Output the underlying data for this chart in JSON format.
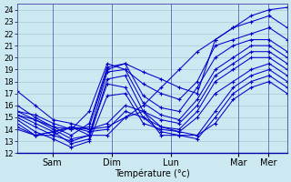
{
  "xlabel": "Température (°c)",
  "ylim": [
    12,
    24.5
  ],
  "yticks": [
    12,
    13,
    14,
    15,
    16,
    17,
    18,
    19,
    20,
    21,
    22,
    23,
    24
  ],
  "xlim": [
    0,
    100
  ],
  "day_ticks": [
    13,
    35,
    57,
    82,
    93
  ],
  "day_labels": [
    "Sam",
    "Dim",
    "Lun",
    "Mar",
    "Mer"
  ],
  "background_color": "#cce8f0",
  "grid_color": "#a8c8d8",
  "line_color": "#0000cc",
  "lines": [
    [
      17.2,
      16.0,
      14.8,
      14.5,
      14.0,
      14.2,
      15.0,
      16.0,
      17.5,
      19.0,
      20.5,
      21.5,
      22.5,
      23.5,
      24.0,
      24.2
    ],
    [
      15.5,
      15.2,
      14.5,
      14.0,
      14.2,
      19.0,
      19.5,
      18.8,
      18.2,
      17.5,
      17.0,
      21.5,
      22.5,
      23.0,
      23.5,
      22.5
    ],
    [
      15.2,
      14.8,
      14.2,
      14.0,
      15.5,
      19.5,
      19.0,
      17.8,
      17.0,
      16.5,
      18.0,
      21.0,
      21.5,
      22.0,
      22.5,
      21.5
    ],
    [
      16.0,
      15.0,
      14.2,
      13.5,
      14.5,
      19.2,
      19.5,
      16.8,
      15.8,
      15.5,
      17.5,
      20.0,
      21.0,
      21.5,
      21.5,
      20.5
    ],
    [
      15.5,
      14.8,
      14.0,
      13.2,
      13.5,
      18.8,
      19.0,
      16.2,
      15.2,
      14.8,
      16.5,
      19.0,
      20.0,
      21.0,
      21.0,
      20.0
    ],
    [
      15.2,
      14.5,
      13.8,
      12.8,
      13.2,
      18.2,
      18.5,
      15.5,
      14.8,
      14.5,
      16.0,
      18.5,
      19.5,
      20.5,
      20.5,
      19.5
    ],
    [
      15.0,
      14.2,
      13.5,
      13.0,
      13.5,
      17.8,
      17.5,
      15.0,
      14.2,
      14.0,
      15.5,
      18.0,
      19.0,
      20.0,
      20.0,
      19.0
    ],
    [
      14.8,
      13.8,
      13.2,
      12.5,
      13.0,
      16.8,
      17.0,
      14.5,
      14.0,
      13.8,
      15.0,
      17.0,
      18.0,
      19.0,
      19.5,
      18.5
    ],
    [
      14.5,
      13.5,
      13.8,
      14.2,
      14.0,
      14.5,
      16.0,
      15.5,
      14.2,
      13.8,
      13.5,
      15.5,
      17.5,
      18.5,
      19.0,
      18.0
    ],
    [
      14.2,
      13.5,
      13.5,
      14.2,
      13.8,
      14.0,
      15.5,
      15.0,
      13.8,
      13.5,
      13.2,
      15.0,
      17.0,
      18.0,
      18.5,
      17.5
    ],
    [
      14.0,
      13.5,
      13.8,
      14.2,
      13.5,
      13.5,
      15.0,
      15.5,
      13.5,
      13.5,
      13.5,
      14.5,
      16.5,
      17.5,
      18.0,
      17.0
    ]
  ]
}
